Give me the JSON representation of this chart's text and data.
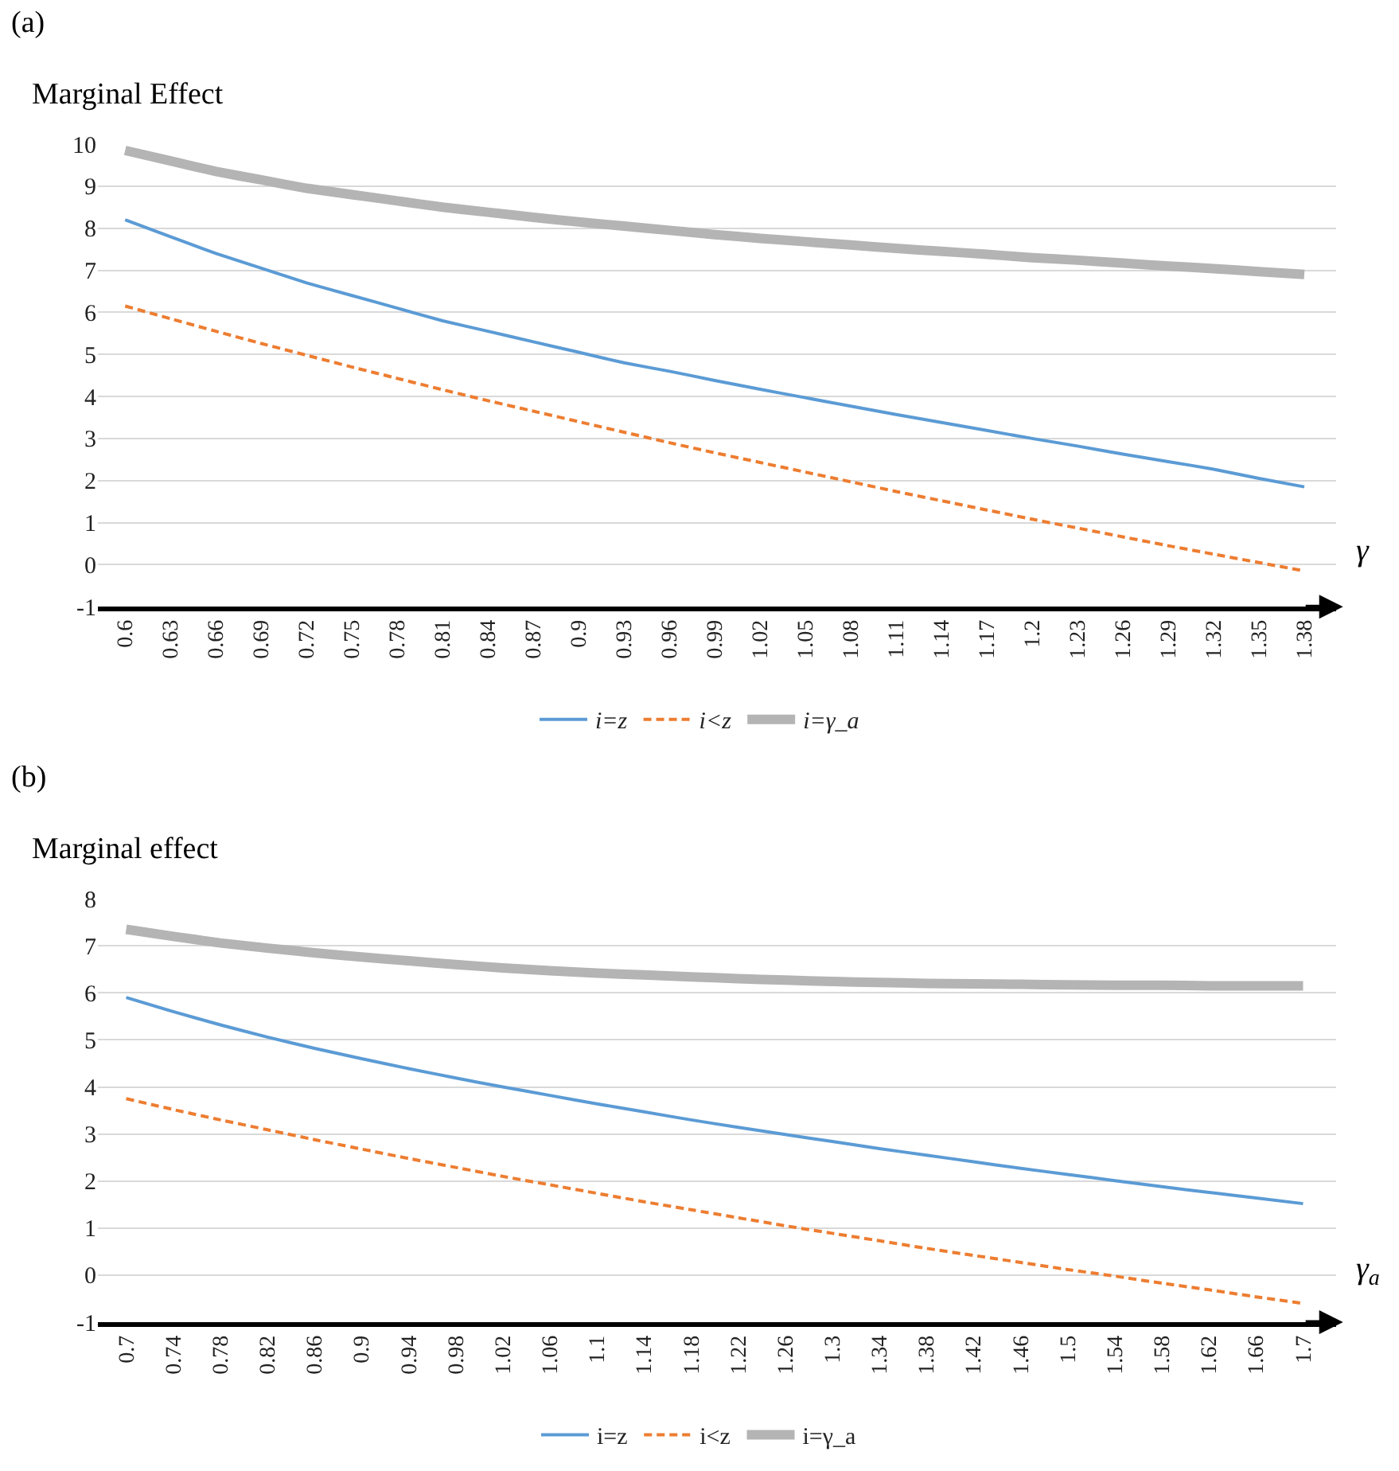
{
  "chart_data": [
    {
      "type": "line",
      "title": "(a)",
      "ylabel": "Marginal Effect",
      "xlabel": "γ",
      "categories": [
        "0.6",
        "0.63",
        "0.66",
        "0.69",
        "0.72",
        "0.75",
        "0.78",
        "0.81",
        "0.84",
        "0.87",
        "0.9",
        "0.93",
        "0.96",
        "0.99",
        "1.02",
        "1.05",
        "1.08",
        "1.11",
        "1.14",
        "1.17",
        "1.2",
        "1.23",
        "1.26",
        "1.29",
        "1.32",
        "1.35",
        "1.38"
      ],
      "series": [
        {
          "name": "i=z",
          "color": "#5b9bd5",
          "line_style": "solid",
          "values": [
            8.2,
            7.8,
            7.4,
            7.05,
            6.7,
            6.4,
            6.1,
            5.8,
            5.55,
            5.3,
            5.05,
            4.8,
            4.6,
            4.38,
            4.17,
            3.97,
            3.77,
            3.57,
            3.38,
            3.19,
            3.0,
            2.82,
            2.63,
            2.45,
            2.27,
            2.05,
            1.85
          ]
        },
        {
          "name": "i<z",
          "color": "#ed7d31",
          "line_style": "dashed",
          "values": [
            6.15,
            5.85,
            5.55,
            5.26,
            4.98,
            4.7,
            4.43,
            4.16,
            3.9,
            3.65,
            3.4,
            3.15,
            2.9,
            2.66,
            2.43,
            2.2,
            1.97,
            1.74,
            1.52,
            1.3,
            1.08,
            0.87,
            0.66,
            0.45,
            0.25,
            0.05,
            -0.15
          ]
        },
        {
          "name": "i=γ_a",
          "color": "#b4b4b4",
          "line_style": "solid",
          "values": [
            9.85,
            9.6,
            9.35,
            9.15,
            8.95,
            8.8,
            8.65,
            8.5,
            8.38,
            8.26,
            8.15,
            8.05,
            7.95,
            7.85,
            7.76,
            7.68,
            7.6,
            7.52,
            7.45,
            7.38,
            7.3,
            7.24,
            7.17,
            7.1,
            7.04,
            6.97,
            6.9
          ]
        }
      ],
      "ylim": [
        -1,
        10
      ],
      "yticks": [
        -1,
        0,
        1,
        2,
        3,
        4,
        5,
        6,
        7,
        8,
        9,
        10
      ],
      "grid": "y",
      "legend": "bottom",
      "marker": "none"
    },
    {
      "type": "line",
      "title": "(b)",
      "ylabel": "Marginal effect",
      "xlabel": "γ$_{a}$",
      "categories": [
        "0.7",
        "0.74",
        "0.78",
        "0.82",
        "0.86",
        "0.9",
        "0.94",
        "0.98",
        "1.02",
        "1.06",
        "1.1",
        "1.14",
        "1.18",
        "1.22",
        "1.26",
        "1.3",
        "1.34",
        "1.38",
        "1.42",
        "1.46",
        "1.5",
        "1.54",
        "1.58",
        "1.62",
        "1.66",
        "1.7"
      ],
      "series": [
        {
          "name": "i=z",
          "color": "#5b9bd5",
          "line_style": "solid",
          "values": [
            5.9,
            5.6,
            5.32,
            5.06,
            4.82,
            4.6,
            4.39,
            4.19,
            4.0,
            3.82,
            3.64,
            3.47,
            3.3,
            3.14,
            2.99,
            2.84,
            2.69,
            2.55,
            2.41,
            2.27,
            2.14,
            2.01,
            1.88,
            1.76,
            1.64,
            1.52
          ]
        },
        {
          "name": "i<z",
          "color": "#ed7d31",
          "line_style": "dashed",
          "values": [
            3.75,
            3.52,
            3.3,
            3.09,
            2.88,
            2.68,
            2.48,
            2.29,
            2.1,
            1.92,
            1.74,
            1.56,
            1.39,
            1.22,
            1.05,
            0.89,
            0.73,
            0.57,
            0.42,
            0.27,
            0.12,
            -0.02,
            -0.17,
            -0.31,
            -0.46,
            -0.6
          ]
        },
        {
          "name": "i=γ_a",
          "color": "#b4b4b4",
          "line_style": "solid",
          "values": [
            7.35,
            7.2,
            7.06,
            6.95,
            6.85,
            6.76,
            6.68,
            6.6,
            6.53,
            6.47,
            6.42,
            6.38,
            6.34,
            6.3,
            6.27,
            6.24,
            6.22,
            6.2,
            6.19,
            6.18,
            6.17,
            6.16,
            6.16,
            6.15,
            6.15,
            6.15
          ]
        }
      ],
      "ylim": [
        -1,
        8
      ],
      "yticks": [
        -1,
        0,
        1,
        2,
        3,
        4,
        5,
        6,
        7,
        8
      ],
      "grid": "y",
      "legend": "bottom",
      "marker": "none"
    }
  ]
}
